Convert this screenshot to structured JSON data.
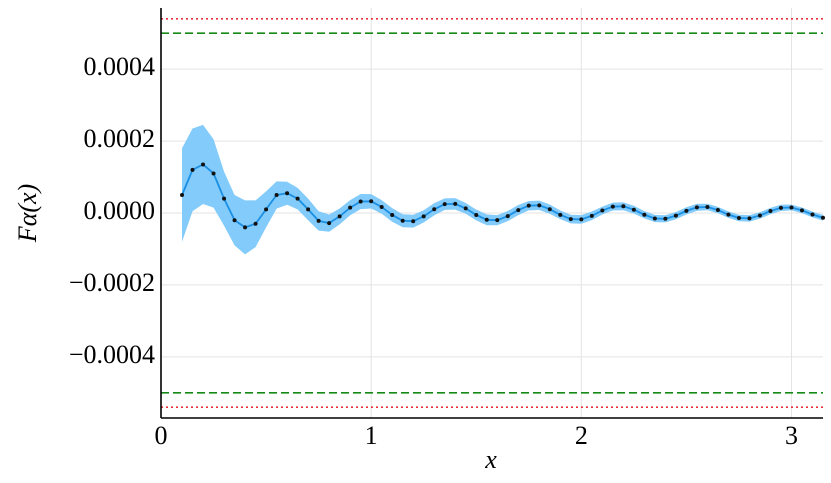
{
  "chart_data": {
    "type": "line",
    "xlabel": "x",
    "ylabel": "Fα(x)",
    "xlim": [
      0,
      3.15
    ],
    "ylim": [
      -0.00057,
      0.00057
    ],
    "xticks": [
      0,
      1,
      2,
      3
    ],
    "yticks": [
      {
        "value": -0.0004,
        "label": "−0.0004"
      },
      {
        "value": -0.0002,
        "label": "−0.0002"
      },
      {
        "value": 0,
        "label": "0.0000"
      },
      0.0002,
      0.0004
    ],
    "grid": true,
    "hlines": [
      {
        "y": 0.00054,
        "color": "#e8303a",
        "dash": "dotted"
      },
      {
        "y": 0.0005,
        "color": "#168a16",
        "dash": "dashed"
      },
      {
        "y": -0.0005,
        "color": "#168a16",
        "dash": "dashed"
      },
      {
        "y": -0.00054,
        "color": "#e8303a",
        "dash": "dotted"
      }
    ],
    "x": [
      0.1,
      0.15,
      0.2,
      0.25,
      0.3,
      0.35,
      0.4,
      0.45,
      0.5,
      0.55,
      0.6,
      0.65,
      0.7,
      0.75,
      0.8,
      0.85,
      0.9,
      0.95,
      1.0,
      1.05,
      1.1,
      1.15,
      1.2,
      1.25,
      1.3,
      1.35,
      1.4,
      1.45,
      1.5,
      1.55,
      1.6,
      1.65,
      1.7,
      1.75,
      1.8,
      1.85,
      1.9,
      1.95,
      2.0,
      2.05,
      2.1,
      2.15,
      2.2,
      2.25,
      2.3,
      2.35,
      2.4,
      2.45,
      2.5,
      2.55,
      2.6,
      2.65,
      2.7,
      2.75,
      2.8,
      2.85,
      2.9,
      2.95,
      3.0,
      3.05,
      3.1,
      3.15
    ],
    "series": [
      {
        "color": "#1a8fe3",
        "band_color": "#82cbfa",
        "marker_color": "#111111",
        "values": [
          5e-05,
          0.00012,
          0.000135,
          0.00011,
          4e-05,
          -2e-05,
          -4e-05,
          -3e-05,
          1e-05,
          5e-05,
          5.5e-05,
          4e-05,
          1e-05,
          -2.2e-05,
          -2.8e-05,
          -9.5e-06,
          1.48e-05,
          3.19e-05,
          3.25e-05,
          1.68e-05,
          -5.4e-06,
          -2.16e-05,
          -2.28e-05,
          -9.3e-06,
          1.03e-05,
          2.46e-05,
          2.53e-05,
          1.28e-05,
          -5.5e-06,
          -1.89e-05,
          -1.99e-05,
          -8.6e-06,
          8.1e-06,
          2.04e-05,
          2.13e-05,
          1.06e-05,
          -5.2e-06,
          -1.69e-05,
          -1.78e-05,
          -7.9e-06,
          6.8e-06,
          1.78e-05,
          1.86e-05,
          9.2e-06,
          -4.9e-06,
          -1.53e-05,
          -1.61e-05,
          -7.3e-06,
          5.9e-06,
          1.58e-05,
          1.67e-05,
          8.2e-06,
          -4.6e-06,
          -1.4e-05,
          -1.49e-05,
          -6.8e-06,
          5.4e-06,
          1.44e-05,
          1.52e-05,
          7.4e-06,
          -4.3e-06,
          -1.31e-05
        ],
        "errors": [
          0.00013,
          0.000115,
          0.00011,
          9.5e-05,
          7.5e-05,
          7e-05,
          7.5e-05,
          6.5e-05,
          5e-05,
          3.8e-05,
          3.2e-05,
          3e-05,
          3e-05,
          2.7e-05,
          2.4e-05,
          2.2e-05,
          2.1e-05,
          2.1e-05,
          2e-05,
          1.9e-05,
          1.9e-05,
          1.8e-05,
          1.8e-05,
          1.7e-05,
          1.7e-05,
          1.6e-05,
          1.6e-05,
          1.5e-05,
          1.5e-05,
          1.5e-05,
          1.4e-05,
          1.4e-05,
          1.4e-05,
          1.3e-05,
          1.3e-05,
          1.3e-05,
          1.2e-05,
          1.2e-05,
          1.2e-05,
          1.2e-05,
          1.1e-05,
          1.1e-05,
          1.1e-05,
          1.1e-05,
          1e-05,
          1e-05,
          1e-05,
          1e-05,
          1e-05,
          1e-05,
          9e-06,
          9e-06,
          9e-06,
          9e-06,
          9e-06,
          9e-06,
          9e-06,
          9e-06,
          8e-06,
          8e-06,
          8e-06,
          8e-06
        ]
      }
    ]
  }
}
